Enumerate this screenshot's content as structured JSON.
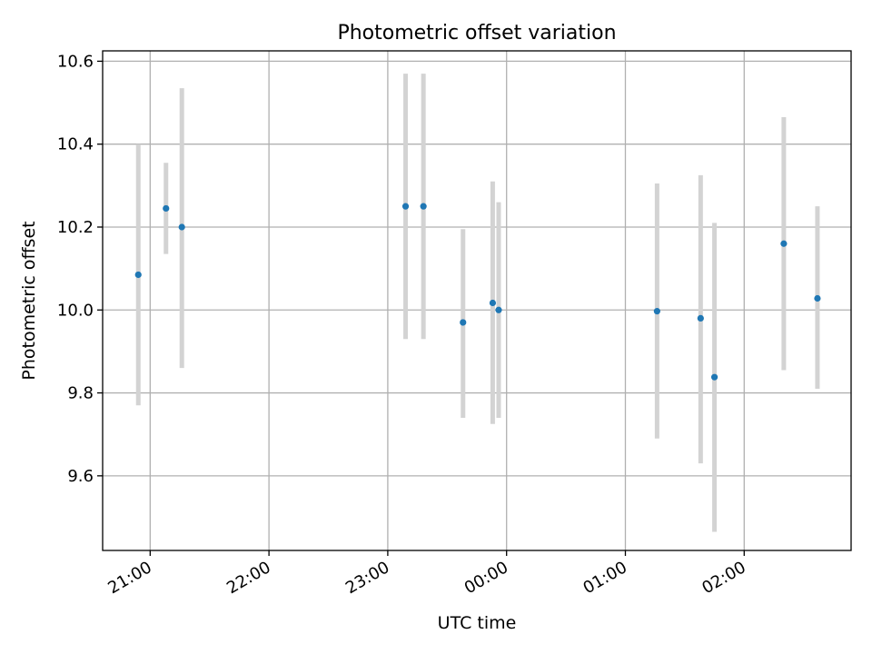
{
  "chart_data": {
    "type": "scatter",
    "title": "Photometric offset variation",
    "xlabel": "UTC time",
    "ylabel": "Photometric offset",
    "x_ticks": [
      "21:00",
      "22:00",
      "23:00",
      "00:00",
      "01:00",
      "02:00"
    ],
    "y_ticks": [
      "9.6",
      "9.8",
      "10.0",
      "10.2",
      "10.4",
      "10.6"
    ],
    "xlim": [
      "20:36",
      "02:54"
    ],
    "ylim": [
      9.42,
      10.625
    ],
    "grid": true,
    "point_color": "#1f77b4",
    "errorbar_color": "#d3d3d3",
    "points": [
      {
        "time": "20:54",
        "y": 10.085,
        "ylow": 9.77,
        "yhigh": 10.4
      },
      {
        "time": "21:08",
        "y": 10.245,
        "ylow": 10.135,
        "yhigh": 10.355
      },
      {
        "time": "21:16",
        "y": 10.2,
        "ylow": 9.86,
        "yhigh": 10.535
      },
      {
        "time": "23:09",
        "y": 10.25,
        "ylow": 9.93,
        "yhigh": 10.57
      },
      {
        "time": "23:18",
        "y": 10.25,
        "ylow": 9.93,
        "yhigh": 10.57
      },
      {
        "time": "23:38",
        "y": 9.97,
        "ylow": 9.74,
        "yhigh": 10.195
      },
      {
        "time": "23:53",
        "y": 10.017,
        "ylow": 9.725,
        "yhigh": 10.31
      },
      {
        "time": "23:56",
        "y": 10.0,
        "ylow": 9.74,
        "yhigh": 10.26
      },
      {
        "time": "01:16",
        "y": 9.997,
        "ylow": 9.69,
        "yhigh": 10.305
      },
      {
        "time": "01:38",
        "y": 9.98,
        "ylow": 9.63,
        "yhigh": 10.325
      },
      {
        "time": "01:45",
        "y": 9.838,
        "ylow": 9.465,
        "yhigh": 10.21
      },
      {
        "time": "02:20",
        "y": 10.16,
        "ylow": 9.855,
        "yhigh": 10.465
      },
      {
        "time": "02:37",
        "y": 10.028,
        "ylow": 9.81,
        "yhigh": 10.25
      }
    ]
  }
}
